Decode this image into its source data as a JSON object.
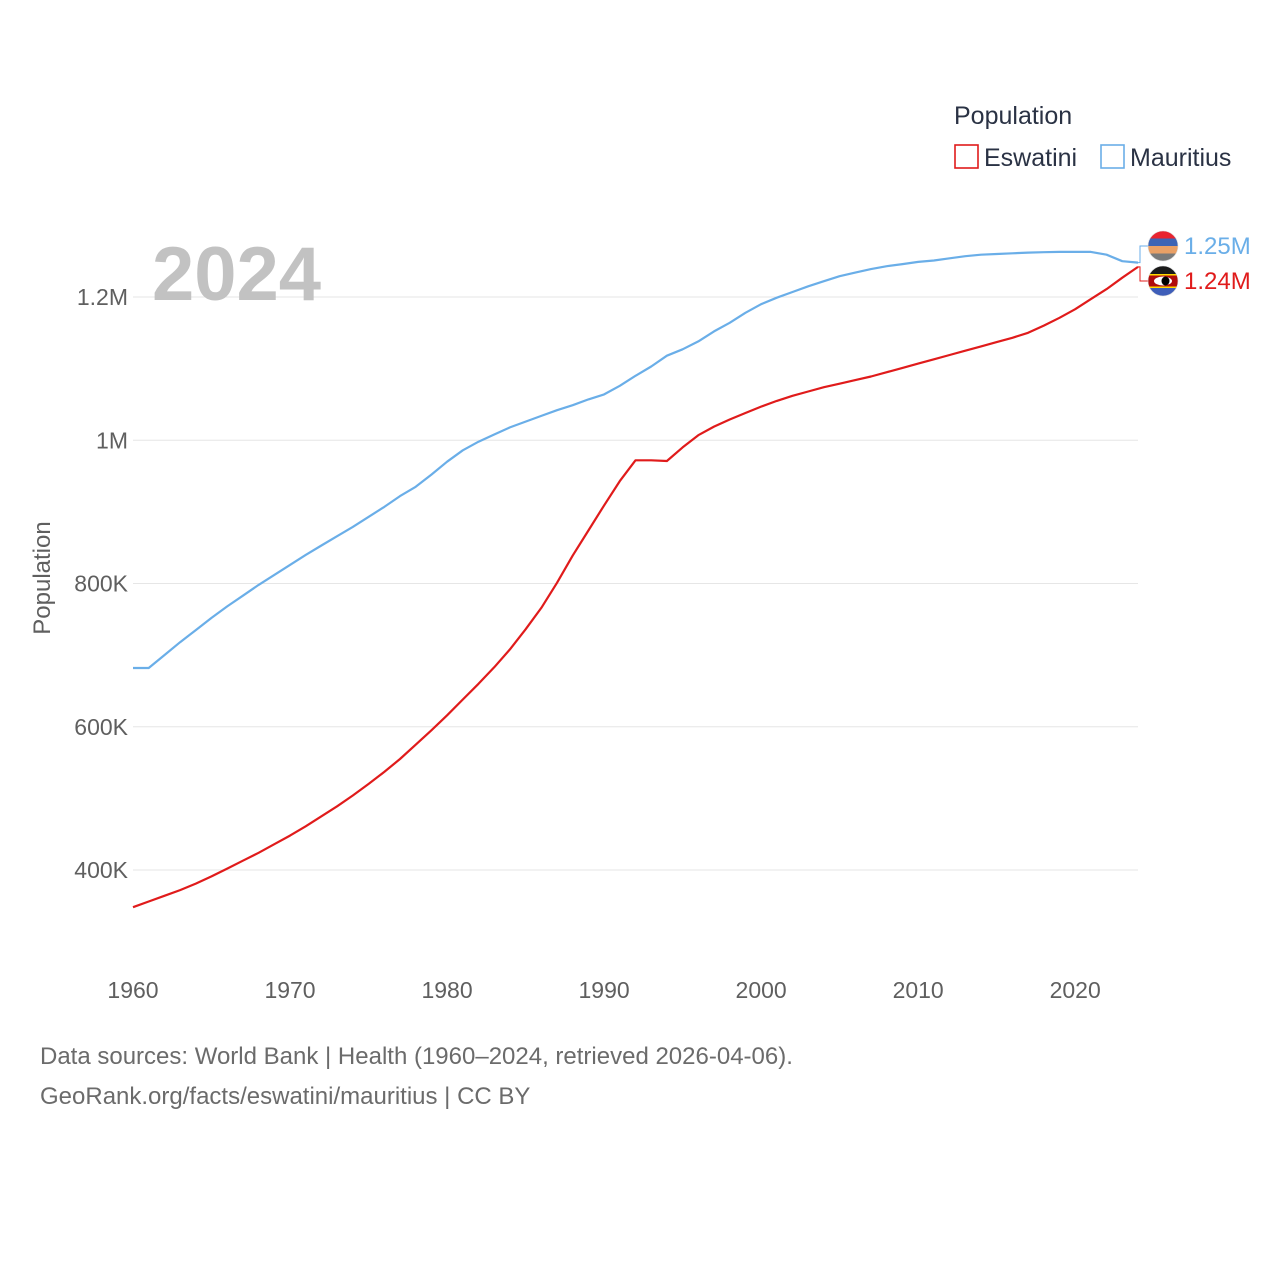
{
  "chart_data": {
    "type": "line",
    "title": "Population",
    "ylabel": "Population",
    "xlabel": "",
    "current_year": "2024",
    "xlim": [
      1960,
      2024
    ],
    "ylim": [
      300000,
      1330000
    ],
    "x_ticks": [
      1960,
      1970,
      1980,
      1990,
      2000,
      2010,
      2020
    ],
    "y_ticks": [
      {
        "value": 400000,
        "label": "400K"
      },
      {
        "value": 600000,
        "label": "600K"
      },
      {
        "value": 800000,
        "label": "800K"
      },
      {
        "value": 1000000,
        "label": "1M"
      },
      {
        "value": 1200000,
        "label": "1.2M"
      }
    ],
    "legend": {
      "title": "Population",
      "position": "top-right"
    },
    "x": [
      1960,
      1961,
      1962,
      1963,
      1964,
      1965,
      1966,
      1967,
      1968,
      1969,
      1970,
      1971,
      1972,
      1973,
      1974,
      1975,
      1976,
      1977,
      1978,
      1979,
      1980,
      1981,
      1982,
      1983,
      1984,
      1985,
      1986,
      1987,
      1988,
      1989,
      1990,
      1991,
      1992,
      1993,
      1994,
      1995,
      1996,
      1997,
      1998,
      1999,
      2000,
      2001,
      2002,
      2003,
      2004,
      2005,
      2006,
      2007,
      2008,
      2009,
      2010,
      2011,
      2012,
      2013,
      2014,
      2015,
      2016,
      2017,
      2018,
      2019,
      2020,
      2021,
      2022,
      2023,
      2024
    ],
    "series": [
      {
        "name": "Eswatini",
        "color": "#e01b1b",
        "end_label": "1.24M",
        "flag": "eswatini-flag-icon",
        "values": [
          348000,
          356000,
          364000,
          372000,
          381000,
          391000,
          402000,
          413000,
          424000,
          436000,
          448000,
          461000,
          475000,
          489000,
          504000,
          520000,
          537000,
          555000,
          575000,
          595000,
          616000,
          638000,
          660000,
          683000,
          708000,
          736000,
          766000,
          801000,
          839000,
          874000,
          909000,
          943000,
          972000,
          972000,
          971000,
          990000,
          1007000,
          1019000,
          1029000,
          1038000,
          1047000,
          1055000,
          1062000,
          1068000,
          1074000,
          1079000,
          1084000,
          1089000,
          1095000,
          1101000,
          1107000,
          1113000,
          1119000,
          1125000,
          1131000,
          1137000,
          1143000,
          1150000,
          1160000,
          1171000,
          1183000,
          1197000,
          1211000,
          1227000,
          1242000
        ]
      },
      {
        "name": "Mauritius",
        "color": "#6aaee8",
        "end_label": "1.25M",
        "flag": "mauritius-flag-icon",
        "values": [
          682000,
          682000,
          700000,
          718000,
          735000,
          752000,
          768000,
          783000,
          798000,
          812000,
          826000,
          840000,
          853000,
          866000,
          879000,
          893000,
          907000,
          922000,
          935000,
          952000,
          970000,
          986000,
          998000,
          1008000,
          1018000,
          1026000,
          1034000,
          1042000,
          1049000,
          1057000,
          1064000,
          1076000,
          1090000,
          1103000,
          1118000,
          1127000,
          1138000,
          1152000,
          1164000,
          1178000,
          1190000,
          1199000,
          1207000,
          1215000,
          1222000,
          1229000,
          1234000,
          1239000,
          1243000,
          1246000,
          1249000,
          1251000,
          1254000,
          1257000,
          1259000,
          1260000,
          1261000,
          1262000,
          1262500,
          1263000,
          1263000,
          1263000,
          1259000,
          1250000,
          1248000
        ]
      }
    ]
  },
  "footer": {
    "line1": "Data sources: World Bank | Health (1960–2024, retrieved 2026-04-06).",
    "line2": "GeoRank.org/facts/eswatini/mauritius | CC BY"
  }
}
